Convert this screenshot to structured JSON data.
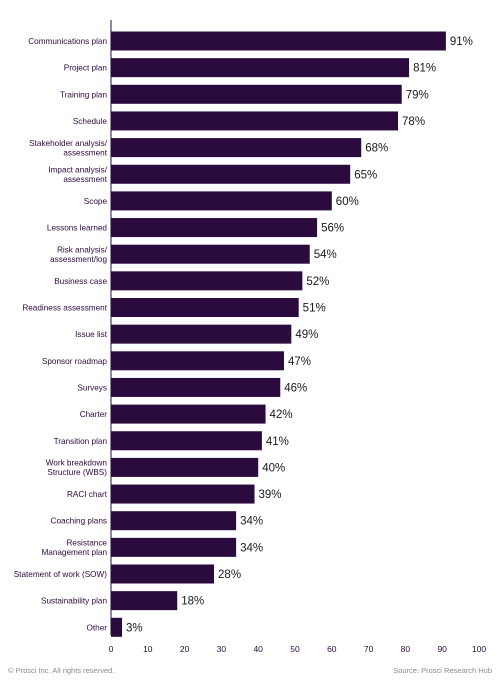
{
  "chart_data": {
    "type": "bar",
    "orientation": "horizontal",
    "categories": [
      [
        "Communications plan"
      ],
      [
        "Project plan"
      ],
      [
        "Training plan"
      ],
      [
        "Schedule"
      ],
      [
        "Stakeholder analysis/",
        "assessment"
      ],
      [
        "Impact analysis/",
        "assessment"
      ],
      [
        "Scope"
      ],
      [
        "Lessons learned"
      ],
      [
        "Risk analysis/",
        "assessment/log"
      ],
      [
        "Business case"
      ],
      [
        "Readiness assessment"
      ],
      [
        "Issue list"
      ],
      [
        "Sponsor roadmap"
      ],
      [
        "Surveys"
      ],
      [
        "Charter"
      ],
      [
        "Transition plan"
      ],
      [
        "Work breakdown",
        "Structure (WBS)"
      ],
      [
        "RACI chart"
      ],
      [
        "Coaching plans"
      ],
      [
        "Resistance",
        "Management plan"
      ],
      [
        "Statement of work (SOW)"
      ],
      [
        "Sustainability plan"
      ],
      [
        "Other"
      ]
    ],
    "values": [
      91,
      81,
      79,
      78,
      68,
      65,
      60,
      56,
      54,
      52,
      51,
      49,
      47,
      46,
      42,
      41,
      40,
      39,
      34,
      34,
      28,
      18,
      3
    ],
    "value_labels": [
      "91%",
      "81%",
      "79%",
      "78%",
      "68%",
      "65%",
      "60%",
      "56%",
      "54%",
      "52%",
      "51%",
      "49%",
      "47%",
      "46%",
      "42%",
      "41%",
      "40%",
      "39%",
      "34%",
      "34%",
      "28%",
      "18%",
      "3%"
    ],
    "xlim": [
      0,
      100
    ],
    "xticks": [
      "0",
      "10",
      "20",
      "30",
      "40",
      "50",
      "60",
      "70",
      "80",
      "90",
      "100"
    ],
    "bar_color": "#2b0a3d",
    "grid": false,
    "title": "",
    "xlabel": "",
    "ylabel": ""
  },
  "footer": {
    "copyright": "© Prosci Inc. All rights reserved.",
    "source": "Source: Prosci Research Hub"
  }
}
